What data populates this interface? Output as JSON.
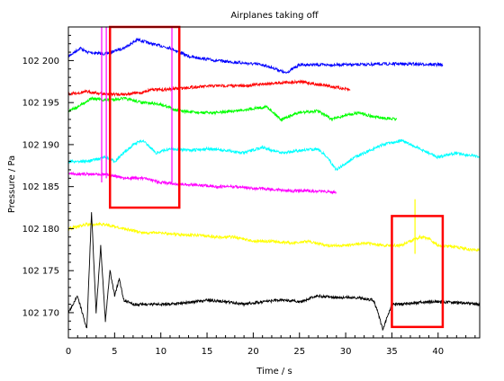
{
  "chart_data": {
    "type": "line",
    "title": "Airplanes taking off",
    "xlabel": "Time / s",
    "ylabel": "Pressure / Pa",
    "xlim": [
      0,
      44.5
    ],
    "ylim": [
      102167,
      102204
    ],
    "x_ticks": [
      0,
      5,
      10,
      15,
      20,
      25,
      30,
      35,
      40
    ],
    "x_tick_labels": [
      "0",
      "5",
      "10",
      "15",
      "20",
      "25",
      "30",
      "35",
      "40"
    ],
    "y_ticks": [
      102170,
      102175,
      102180,
      102185,
      102190,
      102195,
      102200
    ],
    "y_tick_labels": [
      "102 170",
      "102 175",
      "102 180",
      "102 185",
      "102 190",
      "102 195",
      "102 200"
    ],
    "grid": false,
    "series": [
      {
        "color": "#0000ff",
        "x": [
          0,
          1.3,
          2,
          4,
          6,
          7.5,
          9,
          11,
          13,
          16,
          19,
          21,
          22.5,
          23.5,
          25,
          28,
          31,
          34,
          37,
          40.5
        ],
        "y": [
          102200.5,
          102201.5,
          102201,
          102200.8,
          102201.5,
          102202.5,
          102202,
          102201.5,
          102200.5,
          102200,
          102199.7,
          102199.5,
          102199,
          102198.5,
          102199.5,
          102199.5,
          102199.5,
          102199.6,
          102199.6,
          102199.5
        ]
      },
      {
        "color": "#ff0000",
        "x": [
          0,
          2,
          4,
          6,
          8,
          9,
          10,
          13,
          16,
          19,
          22,
          25,
          28,
          30.5
        ],
        "y": [
          102196,
          102196.3,
          102196,
          102196,
          102196.2,
          102196.6,
          102196.5,
          102196.8,
          102197,
          102197,
          102197.3,
          102197.5,
          102197,
          102196.5
        ]
      },
      {
        "color": "#00ff00",
        "x": [
          0,
          1,
          2.5,
          4,
          6,
          8,
          10,
          12,
          14,
          16,
          18,
          20,
          21.5,
          23,
          25,
          27,
          28.5,
          30,
          31.5,
          33,
          35.5
        ],
        "y": [
          102194,
          102194.5,
          102195.5,
          102195.3,
          102195.5,
          102195,
          102194.8,
          102194,
          102193.8,
          102193.8,
          102194,
          102194.3,
          102194.5,
          102193,
          102193.8,
          102194,
          102193,
          102193.5,
          102193.8,
          102193.3,
          102193
        ]
      },
      {
        "color": "#00ffff",
        "x": [
          0,
          2,
          4,
          5,
          7,
          8,
          9.5,
          11,
          13,
          15,
          17,
          19,
          21,
          23,
          25,
          27,
          28,
          29,
          31,
          34,
          36,
          38,
          40,
          42,
          44.5
        ],
        "y": [
          102188,
          102188,
          102188.5,
          102188,
          102190,
          102190.5,
          102189,
          102189.5,
          102189.3,
          102189.5,
          102189.3,
          102189,
          102189.7,
          102189,
          102189.3,
          102189.5,
          102188.5,
          102187,
          102188.5,
          102190,
          102190.5,
          102189.5,
          102188.5,
          102189,
          102188.5
        ]
      },
      {
        "color": "#ff00ff",
        "x": [
          0,
          2,
          4,
          6,
          8,
          10,
          12,
          14,
          16,
          18,
          20,
          22,
          24,
          26,
          28,
          29
        ],
        "y": [
          102186.5,
          102186.5,
          102186.5,
          102186,
          102186,
          102185.5,
          102185.3,
          102185.2,
          102185,
          102185,
          102184.8,
          102184.7,
          102184.5,
          102184.5,
          102184.4,
          102184.3
        ]
      },
      {
        "color": "#ffff00",
        "x": [
          0,
          2,
          4,
          6,
          8,
          10,
          12,
          14,
          16,
          18,
          20,
          22,
          24,
          26,
          28,
          30,
          32,
          34,
          36,
          38,
          39,
          40,
          42,
          43.5,
          44.5
        ],
        "y": [
          102180,
          102180.5,
          102180.5,
          102180,
          102179.5,
          102179.5,
          102179.3,
          102179.2,
          102179,
          102179,
          102178.5,
          102178.5,
          102178.3,
          102178.5,
          102178,
          102178,
          102178.3,
          102178,
          102178,
          102179,
          102178.8,
          102178,
          102177.8,
          102177.5,
          102177.5
        ]
      },
      {
        "color": "#000000",
        "x": [
          0,
          1,
          1.5,
          2,
          2.5,
          3,
          3.5,
          4,
          4.5,
          5,
          5.5,
          6,
          7,
          9,
          11,
          13,
          15,
          17,
          19,
          21,
          23,
          25,
          27,
          29,
          31,
          33,
          33.5,
          34,
          35,
          36,
          38,
          40,
          42,
          44.5
        ],
        "y": [
          102170,
          102172,
          102170,
          102168,
          102182,
          102170,
          102178,
          102169,
          102175,
          102172,
          102174,
          102171.5,
          102171,
          102171,
          102171,
          102171.2,
          102171.5,
          102171.3,
          102171,
          102171.3,
          102171.5,
          102171.3,
          102172,
          102171.8,
          102171.8,
          102171.5,
          102170,
          102168,
          102171,
          102171,
          102171.2,
          102171.3,
          102171.2,
          102171
        ]
      }
    ]
  }
}
